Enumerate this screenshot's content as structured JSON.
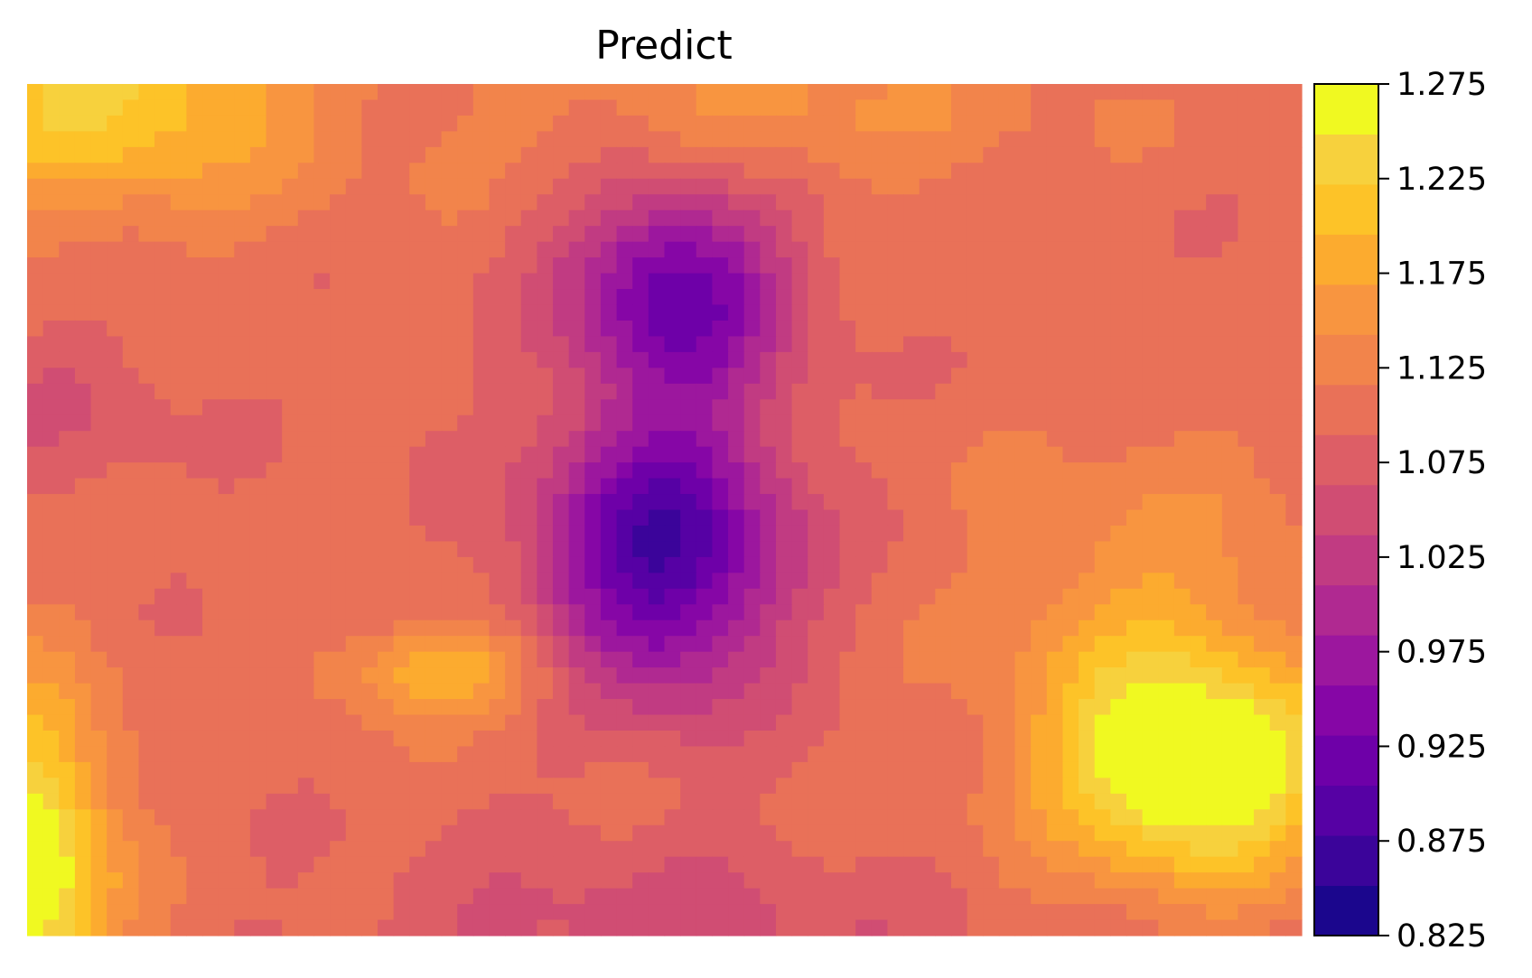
{
  "chart_data": {
    "type": "heatmap",
    "subtype": "filled-contour",
    "title": "Predict",
    "xlabel": "",
    "ylabel": "",
    "axes_visible": false,
    "grid": false,
    "colormap": "plasma",
    "colorbar": {
      "position": "right",
      "vmin": 0.825,
      "vmax": 1.275,
      "level_step": 0.025,
      "ticks": [
        0.825,
        0.875,
        0.925,
        0.975,
        1.025,
        1.075,
        1.125,
        1.175,
        1.225,
        1.275
      ],
      "tick_labels": [
        "0.825",
        "0.875",
        "0.925",
        "0.975",
        "1.025",
        "1.075",
        "1.125",
        "1.175",
        "1.225",
        "1.275"
      ],
      "colors": [
        "#1b068d",
        "#3b049a",
        "#5601a4",
        "#6e00a8",
        "#8606a6",
        "#9c179e",
        "#b02991",
        "#c13b82",
        "#d04d73",
        "#dd5e66",
        "#e97158",
        "#f2844b",
        "#f89540",
        "#fcab2f",
        "#fdc328",
        "#f7d13d",
        "#f0f921"
      ]
    },
    "field_features": [
      {
        "kind": "minimum",
        "description": "deep trough upper-center",
        "value": 0.84
      },
      {
        "kind": "maximum",
        "description": "peak lower-right",
        "value": 1.27
      },
      {
        "kind": "maximum",
        "description": "peak lower-left edge",
        "value": 1.26
      }
    ]
  }
}
